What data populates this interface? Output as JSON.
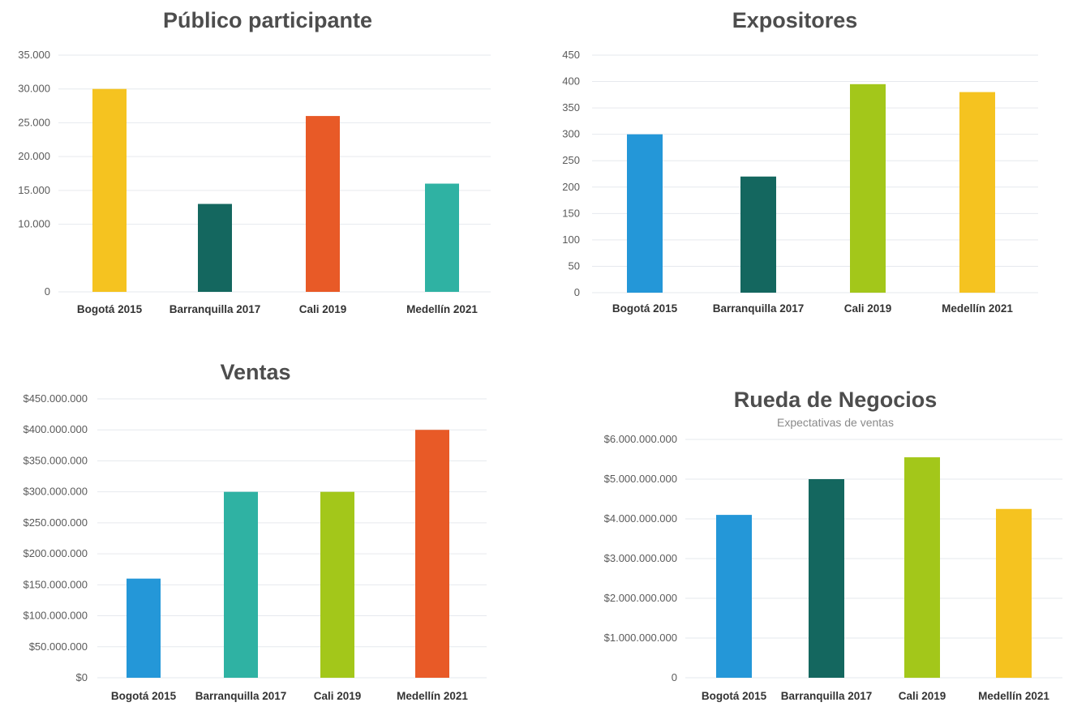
{
  "chart_data": [
    {
      "id": "publico",
      "type": "bar",
      "title": "Público participante",
      "subtitle": "",
      "categories": [
        "Bogotá 2015",
        "Barranquilla 2017",
        "Cali 2019",
        "Medellín 2021"
      ],
      "values": [
        30000,
        13000,
        26000,
        16000
      ],
      "colors": [
        "#f5c320",
        "#14675f",
        "#e85a27",
        "#2fb2a3"
      ],
      "ylim": [
        0,
        35000
      ],
      "yticks": [
        0,
        10000,
        15000,
        20000,
        25000,
        30000,
        35000
      ],
      "ytick_labels": [
        "0",
        "10.000",
        "15.000",
        "20.000",
        "25.000",
        "30.000",
        "35.000"
      ],
      "tick_color": "#3aa79a",
      "grid": true
    },
    {
      "id": "expositores",
      "type": "bar",
      "title": "Expositores",
      "subtitle": "",
      "categories": [
        "Bogotá 2015",
        "Barranquilla 2017",
        "Cali 2019",
        "Medellín 2021"
      ],
      "values": [
        300,
        220,
        395,
        380
      ],
      "colors": [
        "#2497d8",
        "#14675f",
        "#a3c71a",
        "#f5c320"
      ],
      "ylim": [
        0,
        450
      ],
      "yticks": [
        0,
        50,
        100,
        150,
        200,
        250,
        300,
        350,
        400,
        450
      ],
      "ytick_labels": [
        "0",
        "50",
        "100",
        "150",
        "200",
        "250",
        "300",
        "350",
        "400",
        "450"
      ],
      "tick_color": "#555555",
      "grid": true
    },
    {
      "id": "ventas",
      "type": "bar",
      "title": "Ventas",
      "subtitle": "",
      "categories": [
        "Bogotá 2015",
        "Barranquilla 2017",
        "Cali 2019",
        "Medellín 2021"
      ],
      "values": [
        160000000,
        300000000,
        300000000,
        400000000
      ],
      "colors": [
        "#2497d8",
        "#2fb2a3",
        "#a3c71a",
        "#e85a27"
      ],
      "ylim": [
        0,
        450000000
      ],
      "yticks": [
        0,
        50000000,
        100000000,
        150000000,
        200000000,
        250000000,
        300000000,
        350000000,
        400000000,
        450000000
      ],
      "ytick_labels": [
        "$0",
        "$50.000.000",
        "$100.000.000",
        "$150.000.000",
        "$200.000.000",
        "$250.000.000",
        "$300.000.000",
        "$350.000.000",
        "$400.000.000",
        "$450.000.000"
      ],
      "tick_color": "#555555",
      "grid": true
    },
    {
      "id": "rueda",
      "type": "bar",
      "title": "Rueda de Negocios",
      "subtitle": "Expectativas de ventas",
      "categories": [
        "Bogotá 2015",
        "Barranquilla 2017",
        "Cali 2019",
        "Medellín 2021"
      ],
      "values": [
        4100000000,
        5000000000,
        5550000000,
        4250000000
      ],
      "colors": [
        "#2497d8",
        "#14675f",
        "#a3c71a",
        "#f5c320"
      ],
      "ylim": [
        0,
        6000000000
      ],
      "yticks": [
        0,
        1000000000,
        2000000000,
        3000000000,
        4000000000,
        5000000000,
        6000000000
      ],
      "ytick_labels": [
        "0",
        "$1.000.000.000",
        "$2.000.000.000",
        "$3.000.000.000",
        "$4.000.000.000",
        "$5.000.000.000",
        "$6.000.000.000"
      ],
      "tick_color": "#555555",
      "grid": true
    }
  ]
}
